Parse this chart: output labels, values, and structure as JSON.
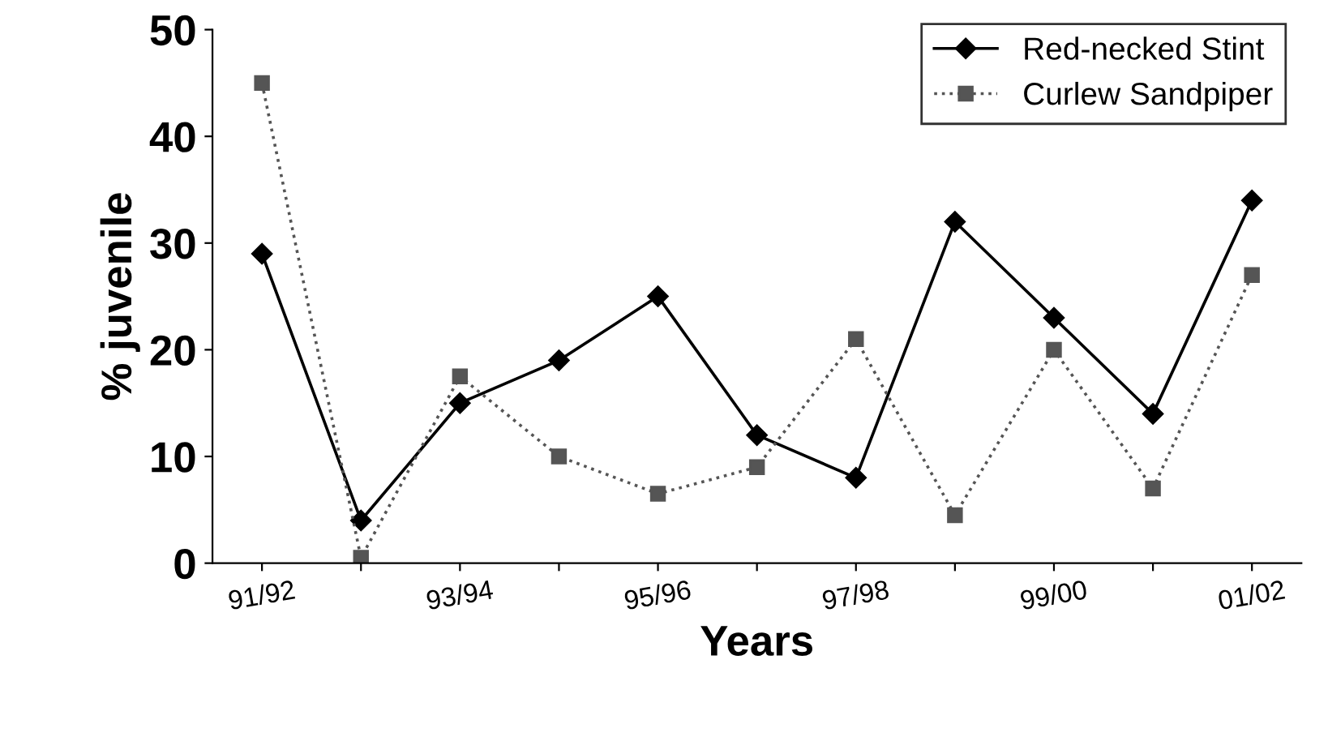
{
  "chart_data": {
    "type": "line",
    "xlabel": "Years",
    "ylabel": "% juvenile",
    "categories": [
      "91/92",
      null,
      "93/94",
      null,
      "95/96",
      null,
      "97/98",
      null,
      "99/00",
      null,
      "01/02"
    ],
    "series": [
      {
        "name": "Red-necked Stint",
        "color": "#000000",
        "marker": "diamond",
        "line_style": "solid",
        "values": [
          29,
          4,
          15,
          19,
          25,
          12,
          8,
          32,
          23,
          14,
          34
        ]
      },
      {
        "name": "Curlew Sandpiper",
        "color": "#555555",
        "marker": "square",
        "line_style": "dotted",
        "values": [
          45,
          0.5,
          17.5,
          10,
          6.5,
          9,
          21,
          4.5,
          20,
          7,
          27
        ]
      }
    ],
    "ylim": [
      0,
      50
    ],
    "yticks": [
      0,
      10,
      20,
      30,
      40,
      50
    ],
    "grid": false,
    "legend": "top right"
  }
}
